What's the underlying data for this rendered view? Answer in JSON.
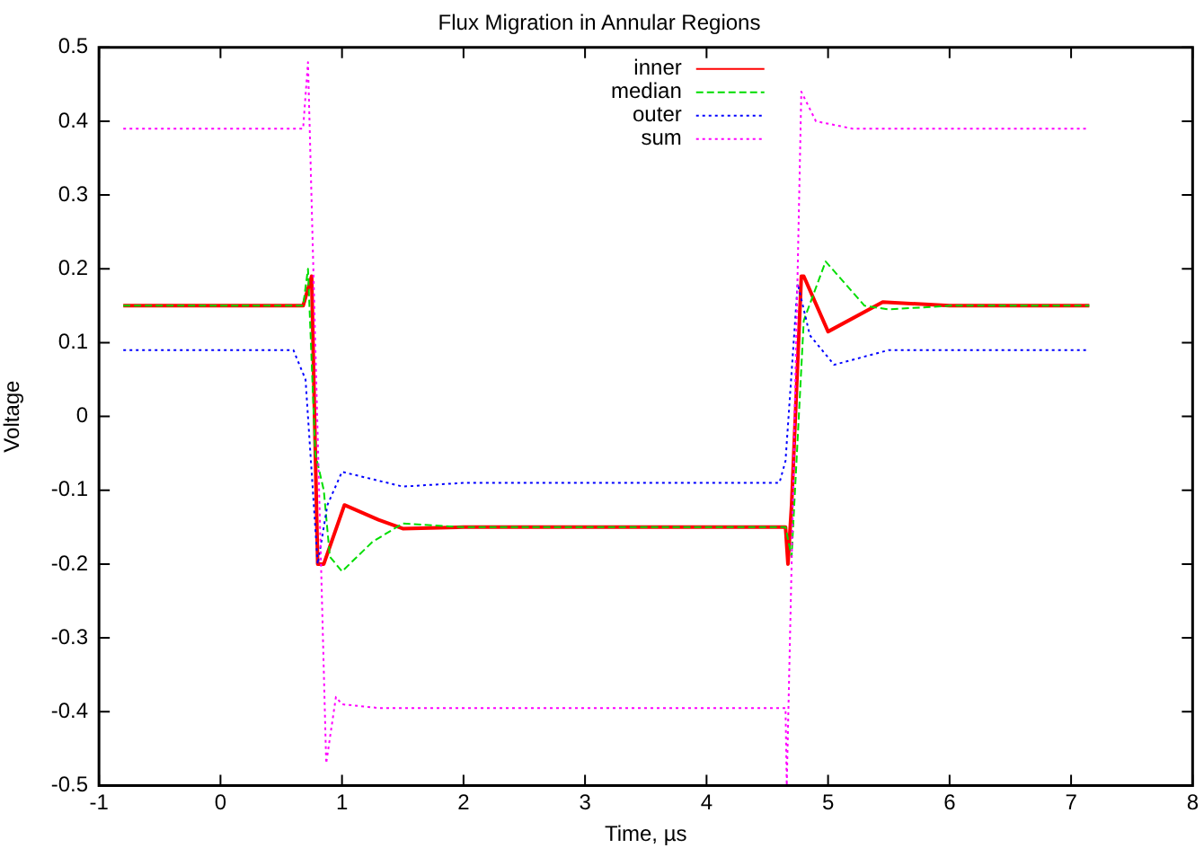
{
  "chart_data": {
    "type": "line",
    "title": "Flux Migration in Annular Regions",
    "xlabel": "Time, µs",
    "ylabel": "Voltage",
    "xlim": [
      -1,
      8
    ],
    "xticks": [
      -1,
      0,
      1,
      2,
      3,
      4,
      5,
      6,
      7,
      8
    ],
    "ylim": [
      -0.5,
      0.5
    ],
    "yticks": [
      -0.5,
      -0.4,
      -0.3,
      -0.2,
      -0.1,
      0,
      0.1,
      0.2,
      0.3,
      0.4,
      0.5
    ],
    "grid": false,
    "legend": "top",
    "marker": "none",
    "series": [
      {
        "name": "inner",
        "color": "#ff0000",
        "line_style": "solid",
        "x": [
          -0.8,
          0.68,
          0.75,
          0.8,
          0.85,
          1.02,
          1.3,
          1.5,
          2,
          3,
          4,
          4.65,
          4.67,
          4.7,
          4.78,
          4.8,
          5.0,
          5.45,
          6,
          7.15
        ],
        "values": [
          0.15,
          0.15,
          0.19,
          -0.2,
          -0.2,
          -0.12,
          -0.14,
          -0.152,
          -0.15,
          -0.15,
          -0.15,
          -0.15,
          -0.2,
          -0.12,
          0.19,
          0.19,
          0.115,
          0.155,
          0.15,
          0.15
        ]
      },
      {
        "name": "median",
        "color": "#00dd00",
        "line_style": "dashed",
        "x": [
          -0.8,
          0.68,
          0.72,
          0.78,
          0.85,
          0.9,
          1.0,
          1.25,
          1.5,
          2,
          3,
          4,
          4.65,
          4.7,
          4.8,
          4.98,
          5.3,
          5.5,
          6,
          7.15
        ],
        "values": [
          0.15,
          0.15,
          0.2,
          -0.05,
          -0.1,
          -0.19,
          -0.21,
          -0.17,
          -0.145,
          -0.15,
          -0.15,
          -0.15,
          -0.15,
          -0.19,
          0.13,
          0.21,
          0.15,
          0.145,
          0.15,
          0.15
        ]
      },
      {
        "name": "outer",
        "color": "#0000ff",
        "line_style": "dotted",
        "x": [
          -0.8,
          0.6,
          0.7,
          0.8,
          0.88,
          1.0,
          1.5,
          2,
          3,
          4,
          4.6,
          4.65,
          4.75,
          4.85,
          5.05,
          5.5,
          6,
          7.15
        ],
        "values": [
          0.09,
          0.09,
          0.05,
          -0.2,
          -0.12,
          -0.075,
          -0.095,
          -0.09,
          -0.09,
          -0.09,
          -0.09,
          -0.06,
          0.18,
          0.11,
          0.07,
          0.09,
          0.09,
          0.09
        ]
      },
      {
        "name": "sum",
        "color": "#ff00ff",
        "line_style": "dotted",
        "x": [
          -0.8,
          0,
          0.68,
          0.72,
          0.78,
          0.87,
          0.95,
          1.0,
          1.3,
          2,
          3,
          4,
          4.65,
          4.66,
          4.7,
          4.78,
          4.9,
          5.2,
          6,
          7.15
        ],
        "values": [
          0.39,
          0.39,
          0.39,
          0.48,
          0.1,
          -0.47,
          -0.38,
          -0.39,
          -0.395,
          -0.395,
          -0.395,
          -0.395,
          -0.395,
          -0.5,
          -0.2,
          0.44,
          0.4,
          0.39,
          0.39,
          0.39
        ]
      }
    ]
  }
}
